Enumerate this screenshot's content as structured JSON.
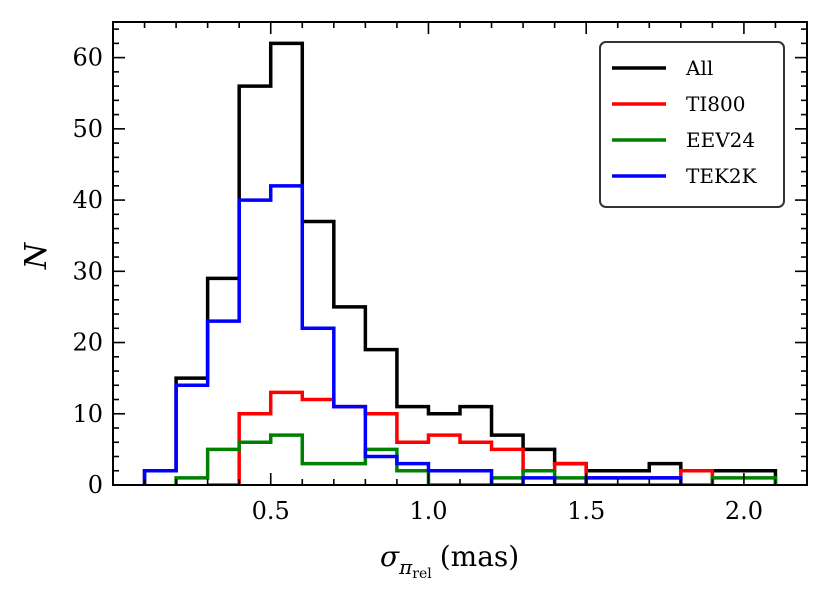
{
  "chart_data": {
    "type": "histogram",
    "ylabel": "N",
    "xlabel": {
      "symbol": "σ",
      "subscript": "π",
      "sub_subscript": "rel",
      "unit": "(mas)"
    },
    "xlim": [
      0.0,
      2.2
    ],
    "ylim": [
      0,
      65
    ],
    "xticks": [
      0.5,
      1.0,
      1.5,
      2.0
    ],
    "xtick_labels": [
      "0.5",
      "1.0",
      "1.5",
      "2.0"
    ],
    "yticks": [
      0,
      10,
      20,
      30,
      40,
      50,
      60
    ],
    "ytick_labels": [
      "0",
      "10",
      "20",
      "30",
      "40",
      "50",
      "60"
    ],
    "legend_position": "top-right",
    "series": [
      {
        "name": "All",
        "color": "#000000",
        "bins": [
          0.1,
          0.2,
          0.3,
          0.4,
          0.5,
          0.6,
          0.7,
          0.8,
          0.9,
          1.0,
          1.1,
          1.2,
          1.3,
          1.4,
          1.5,
          1.6,
          1.7,
          1.8,
          1.9,
          2.0,
          2.1
        ],
        "counts": [
          2,
          15,
          29,
          56,
          62,
          37,
          25,
          19,
          11,
          10,
          11,
          7,
          5,
          3,
          2,
          2,
          3,
          2,
          2,
          2
        ]
      },
      {
        "name": "TI800",
        "color": "#ff0000",
        "bins": [
          0.3,
          0.4,
          0.5,
          0.6,
          0.7,
          0.8,
          0.9,
          1.0,
          1.1,
          1.2,
          1.3,
          1.4,
          1.5,
          1.6,
          1.7,
          1.8,
          1.9
        ],
        "counts": [
          0,
          10,
          13,
          12,
          11,
          10,
          6,
          7,
          6,
          5,
          2,
          3,
          1,
          1,
          1,
          2
        ]
      },
      {
        "name": "EEV24",
        "color": "#008000",
        "bins": [
          0.2,
          0.3,
          0.4,
          0.5,
          0.6,
          0.7,
          0.8,
          0.9,
          1.0,
          1.1,
          1.2,
          1.3,
          1.4,
          1.5,
          1.6,
          1.7,
          1.8,
          1.9,
          2.0,
          2.1
        ],
        "counts": [
          1,
          5,
          6,
          7,
          3,
          3,
          5,
          2,
          0,
          0,
          1,
          2,
          1,
          0,
          0,
          0,
          0,
          1,
          1
        ]
      },
      {
        "name": "TEK2K",
        "color": "#0000ff",
        "bins": [
          0.1,
          0.2,
          0.3,
          0.4,
          0.5,
          0.6,
          0.7,
          0.8,
          0.9,
          1.0,
          1.1,
          1.2,
          1.3,
          1.4,
          1.5,
          1.6,
          1.7,
          1.8
        ],
        "counts": [
          2,
          14,
          23,
          40,
          42,
          22,
          11,
          4,
          3,
          2,
          2,
          0,
          1,
          0,
          1,
          1,
          1
        ]
      }
    ]
  }
}
